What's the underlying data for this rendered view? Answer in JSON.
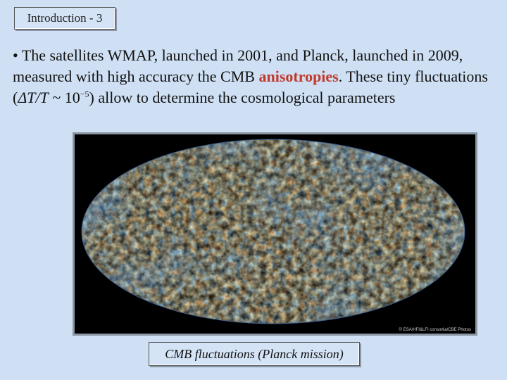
{
  "slide": {
    "title": "Introduction - 3",
    "bullet_symbol": "•",
    "text_part1": "The satellites WMAP, launched in 2001, and Planck, launched in 2009, measured with high accuracy the CMB ",
    "highlight": "anisotropies",
    "text_part2": ". These tiny fluctuations (",
    "formula_delta": "ΔT/T",
    "formula_tilde": " ~ 10",
    "formula_exp": "−5",
    "text_part3": ") allow to determine the cosmological parameters",
    "highlight_color": "#c0392b"
  },
  "image": {
    "credit": "© ESA/HFI&LFI consortia/CBE Photos",
    "caption": "CMB fluctuations (Planck mission)"
  }
}
